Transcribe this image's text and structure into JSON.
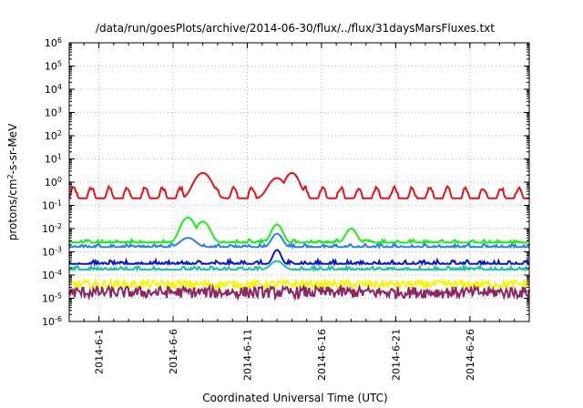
{
  "chart_data": {
    "type": "line",
    "title": "/data/run/goesPlots/archive/2014-06-30/flux/../flux/31daysMarsFluxes.txt",
    "xlabel": "Coordinated Universal Time (UTC)",
    "ylabel": {
      "base": "protons/cm",
      "sup": "2",
      "rest": "-s-sr-MeV"
    },
    "yscale": "log",
    "ylim": [
      1e-06,
      1000000.0
    ],
    "y_ticks": [
      {
        "base": "10",
        "exp": "-6"
      },
      {
        "base": "10",
        "exp": "-5"
      },
      {
        "base": "10",
        "exp": "-4"
      },
      {
        "base": "10",
        "exp": "-3"
      },
      {
        "base": "10",
        "exp": "-2"
      },
      {
        "base": "10",
        "exp": "-1"
      },
      {
        "base": "10",
        "exp": "0"
      },
      {
        "base": "10",
        "exp": "1"
      },
      {
        "base": "10",
        "exp": "2"
      },
      {
        "base": "10",
        "exp": "3"
      },
      {
        "base": "10",
        "exp": "4"
      },
      {
        "base": "10",
        "exp": "5"
      },
      {
        "base": "10",
        "exp": "6"
      }
    ],
    "xlim": [
      "2014-05-30",
      "2014-06-30"
    ],
    "x_ticks": [
      {
        "label": "2014-6-1",
        "date": "2014-06-01"
      },
      {
        "label": "2014-6-6",
        "date": "2014-06-06"
      },
      {
        "label": "2014-6-11",
        "date": "2014-06-11"
      },
      {
        "label": "2014-6-16",
        "date": "2014-06-16"
      },
      {
        "label": "2014-6-21",
        "date": "2014-06-21"
      },
      {
        "label": "2014-6-26",
        "date": "2014-06-26"
      }
    ],
    "grid": true,
    "series": [
      {
        "color": "#e8101a",
        "base": 0.2,
        "jitter": 0.08,
        "osc_amp": 0.45,
        "osc_period_days": 1.2,
        "events": [
          {
            "date": "2014-06-08",
            "peak": 2.5,
            "width_days": 0.6
          },
          {
            "date": "2014-06-13",
            "peak": 1.5,
            "width_days": 0.6
          },
          {
            "date": "2014-06-14",
            "peak": 2.5,
            "width_days": 0.5
          }
        ]
      },
      {
        "color": "#19ee19",
        "base": 0.0025,
        "jitter": 0.1,
        "osc_amp": 0.05,
        "osc_period_days": 1.0,
        "events": [
          {
            "date": "2014-06-07",
            "peak": 0.03,
            "width_days": 0.5
          },
          {
            "date": "2014-06-08",
            "peak": 0.02,
            "width_days": 0.5
          },
          {
            "date": "2014-06-13",
            "peak": 0.015,
            "width_days": 0.4
          },
          {
            "date": "2014-06-18",
            "peak": 0.01,
            "width_days": 0.4
          }
        ]
      },
      {
        "color": "#2a7fe0",
        "base": 0.0016,
        "jitter": 0.1,
        "osc_amp": 0.05,
        "osc_period_days": 1.0,
        "events": [
          {
            "date": "2014-06-07",
            "peak": 0.004,
            "width_days": 0.6
          },
          {
            "date": "2014-06-13",
            "peak": 0.006,
            "width_days": 0.4
          }
        ]
      },
      {
        "color": "#0a14c8",
        "base": 0.0003,
        "jitter": 0.12,
        "osc_amp": 0.05,
        "osc_period_days": 1.0,
        "events": [
          {
            "date": "2014-06-13",
            "peak": 0.0012,
            "width_days": 0.3
          }
        ]
      },
      {
        "color": "#19c3a0",
        "base": 0.00017,
        "jitter": 0.12,
        "osc_amp": 0.03,
        "osc_period_days": 1.0,
        "events": [
          {
            "date": "2014-06-13",
            "peak": 0.0004,
            "width_days": 0.5
          }
        ]
      },
      {
        "color": "#f5f511",
        "base": 4e-05,
        "jitter": 0.18,
        "osc_amp": 0.0,
        "osc_period_days": 1.0,
        "events": []
      },
      {
        "color": "#8e2563",
        "base": 1.8e-05,
        "jitter": 0.25,
        "osc_amp": 0.0,
        "osc_period_days": 1.0,
        "events": []
      }
    ]
  }
}
